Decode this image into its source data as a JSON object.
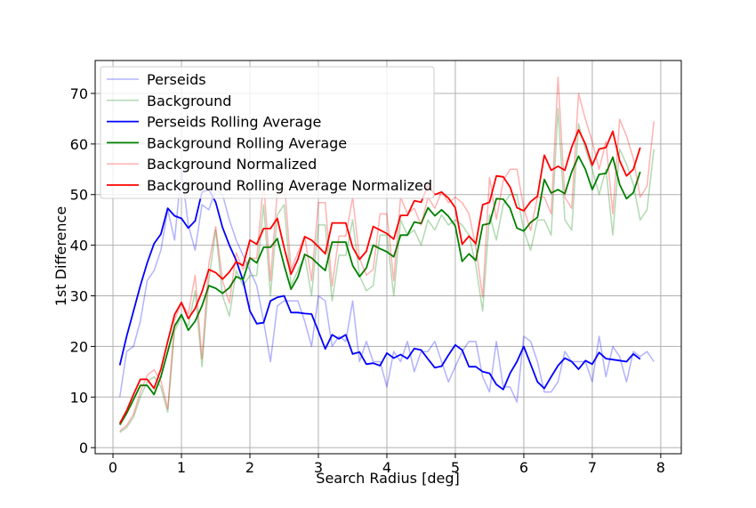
{
  "chart_data": {
    "type": "line",
    "title": "",
    "xlabel": "Search Radius [deg]",
    "ylabel": "1st Difference",
    "xlim": [
      -0.26,
      8.3
    ],
    "ylim": [
      -1.2,
      76.5
    ],
    "xticks": [
      0,
      1,
      2,
      3,
      4,
      5,
      6,
      7,
      8
    ],
    "yticks": [
      0,
      10,
      20,
      30,
      40,
      50,
      60,
      70
    ],
    "grid": true,
    "legend_position": "top-left",
    "x_start": 0.1,
    "x_step": 0.1,
    "series": [
      {
        "name": "Perseids",
        "color": "#0000ff",
        "alpha": 0.3,
        "values": [
          10,
          19,
          20,
          25,
          33,
          35,
          39,
          47,
          41,
          55,
          44,
          39,
          48,
          47,
          51,
          50,
          45,
          41,
          38,
          35,
          32,
          25,
          17,
          28,
          29,
          29,
          29,
          25,
          20,
          30,
          29,
          20,
          22,
          21,
          29,
          17,
          21,
          17,
          17,
          12,
          19,
          17,
          21,
          15,
          19,
          19,
          21,
          17,
          13,
          16,
          19,
          21,
          21,
          14,
          11,
          21,
          12,
          12,
          9,
          22,
          21,
          17,
          11,
          11,
          13,
          19,
          17,
          17,
          17,
          13,
          22,
          14,
          20,
          18,
          13,
          19,
          18,
          19,
          17
        ]
      },
      {
        "name": "Background",
        "color": "#008000",
        "alpha": 0.3,
        "values": [
          3,
          4,
          6,
          10,
          13,
          14,
          12,
          7,
          23,
          26,
          24,
          31,
          16,
          33,
          43,
          30,
          26,
          35,
          32,
          34,
          34,
          48,
          30,
          46,
          48,
          32,
          35,
          38,
          30,
          44,
          44,
          29,
          38,
          38,
          45,
          34,
          31,
          32,
          42,
          42,
          30,
          45,
          42,
          43,
          40,
          45,
          43,
          46,
          44,
          45,
          44,
          42,
          36,
          27,
          46,
          41,
          48,
          50,
          50,
          43,
          39,
          45,
          45,
          42,
          67,
          45,
          43,
          64,
          59,
          55,
          50,
          55,
          42,
          59,
          56,
          52,
          45,
          47,
          59
        ]
      },
      {
        "name": "Perseids Rolling Average",
        "color": "#0000ff",
        "alpha": 1,
        "values": [
          16.3,
          22,
          27,
          32,
          36.5,
          40.3,
          42.2,
          47.3,
          45.8,
          45.3,
          43.4,
          44.8,
          50.5,
          51,
          48.5,
          43.5,
          40,
          37,
          33,
          27,
          24.5,
          24.7,
          29,
          29.7,
          30,
          26.7,
          26.7,
          26.5,
          26.4,
          23,
          19.5,
          22.3,
          21.5,
          22.3,
          18.5,
          18.9,
          16.5,
          16.7,
          16.2,
          18.7,
          17.7,
          18.4,
          17.6,
          19.6,
          19.3,
          17.5,
          15.8,
          16.1,
          18.3,
          20.3,
          19.3,
          16,
          16,
          15,
          14.7,
          12.5,
          11.5,
          14.7,
          17,
          20,
          16.5,
          13,
          11.7,
          14,
          16.2,
          17.7,
          17,
          15.5,
          17.2,
          16.5,
          18.8,
          17.6,
          17.4,
          17.2,
          17,
          18.5,
          17.5
        ]
      },
      {
        "name": "Background Rolling Average",
        "color": "#008000",
        "alpha": 1,
        "values": [
          4.5,
          6.8,
          9.5,
          12.3,
          12.3,
          10.5,
          14,
          19,
          24,
          26.3,
          23.2,
          25,
          28,
          32,
          31.5,
          30.5,
          31.6,
          33.8,
          33.2,
          37.5,
          36.5,
          39.6,
          39.6,
          41.3,
          36,
          31.3,
          33.7,
          38.2,
          37.5,
          36.2,
          35,
          40.6,
          40.6,
          40.6,
          36,
          33.8,
          35.5,
          40,
          39.3,
          38.7,
          37.7,
          42,
          42,
          44.6,
          44.3,
          47.4,
          45.8,
          47,
          45.7,
          43.8,
          36.8,
          38.3,
          37,
          44,
          44.3,
          49.2,
          49.1,
          47.3,
          43.4,
          42.8,
          44.5,
          45.5,
          53,
          50.3,
          51,
          50.2,
          54.5,
          57.6,
          55,
          51,
          54,
          54.2,
          57.4,
          52,
          49.2,
          50.4,
          54.5
        ]
      },
      {
        "name": "Background  Normalized",
        "color": "#ff0000",
        "alpha": 0.3,
        "values": [
          3.3,
          4.4,
          6.6,
          11,
          14.3,
          15.4,
          13.2,
          7.7,
          25.3,
          28.6,
          26.4,
          34.1,
          17.6,
          36.3,
          43.7,
          33,
          28.6,
          38.5,
          35.2,
          37.4,
          37.4,
          52.8,
          33,
          50.6,
          52.8,
          35.2,
          38.5,
          41.8,
          33,
          48.4,
          48.4,
          31.9,
          41.8,
          41.8,
          49.5,
          37.4,
          34.1,
          35.2,
          46.2,
          46.2,
          33,
          49.5,
          46.2,
          47.3,
          44,
          49.5,
          47.3,
          50.6,
          48.4,
          49.5,
          48.4,
          46.2,
          39.6,
          29.7,
          53.4,
          45.1,
          52.8,
          55,
          55,
          47.3,
          42.9,
          49.5,
          49.5,
          46.2,
          73.2,
          49.5,
          47.3,
          70,
          64.9,
          60.5,
          55,
          60.5,
          46.2,
          64.9,
          61.6,
          57.2,
          49.5,
          51.7,
          64.5
        ]
      },
      {
        "name": "Background Rolling Average Normalized",
        "color": "#ff0000",
        "alpha": 1,
        "values": [
          4.8,
          7.3,
          10.5,
          13.5,
          13.5,
          11.7,
          15.5,
          21,
          26.3,
          28.7,
          25.5,
          27.5,
          30.8,
          35.2,
          34.6,
          33.3,
          34.7,
          36.7,
          36,
          41,
          40.2,
          43.3,
          43.3,
          45.3,
          39.5,
          34.3,
          37.2,
          41.7,
          41,
          39.7,
          38.3,
          44.4,
          44.4,
          44.4,
          39.6,
          37.2,
          38.8,
          43.7,
          43,
          42.3,
          41.2,
          45.9,
          45.9,
          48.8,
          48.5,
          51.8,
          50,
          50.5,
          49.3,
          47.4,
          40.2,
          41.8,
          40.3,
          48,
          48.5,
          53.7,
          53.5,
          51.5,
          47.4,
          46.8,
          48.6,
          49.7,
          57.8,
          54.8,
          55.6,
          54.8,
          59.4,
          62.8,
          60,
          55.8,
          59,
          59.3,
          62.5,
          56.7,
          53.7,
          55,
          59.3
        ]
      }
    ],
    "legend": [
      "Perseids",
      "Background",
      "Perseids Rolling Average",
      "Background Rolling Average",
      "Background  Normalized",
      "Background Rolling Average Normalized"
    ]
  }
}
